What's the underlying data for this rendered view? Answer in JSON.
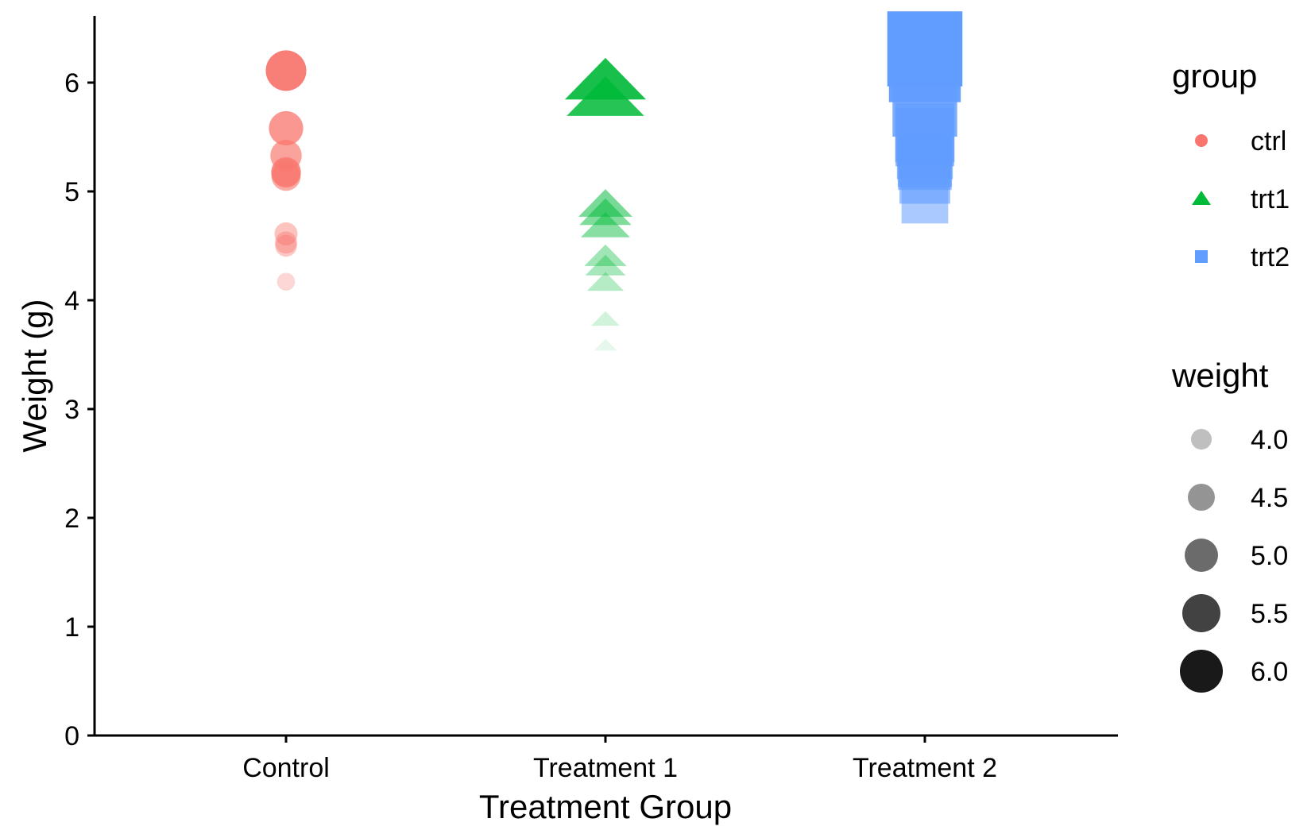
{
  "chart_data": {
    "type": "scatter",
    "xlabel": "Treatment Group",
    "ylabel": "Weight (g)",
    "ylim": [
      0,
      6.6
    ],
    "y_ticks": [
      "0",
      "1",
      "2",
      "3",
      "4",
      "5",
      "6"
    ],
    "categories": [
      "Control",
      "Treatment 1",
      "Treatment 2"
    ],
    "grid": false,
    "legend_placement": "right",
    "series": [
      {
        "name": "ctrl",
        "category": "Control",
        "shape": "circle",
        "color": "#F8766D",
        "values": [
          4.17,
          5.58,
          5.18,
          6.11,
          4.5,
          4.61,
          5.17,
          4.53,
          5.33,
          5.14
        ]
      },
      {
        "name": "trt1",
        "category": "Treatment 1",
        "shape": "triangle",
        "color": "#00BA38",
        "values": [
          4.81,
          4.17,
          4.41,
          3.59,
          5.87,
          3.83,
          6.03,
          4.89,
          4.32,
          4.69
        ]
      },
      {
        "name": "trt2",
        "category": "Treatment 2",
        "shape": "square",
        "color": "#619CFF",
        "values": [
          6.31,
          5.12,
          5.54,
          5.5,
          5.37,
          5.29,
          4.92,
          6.15,
          5.8,
          5.26
        ]
      }
    ],
    "legend_group": {
      "title": "group",
      "items": [
        {
          "label": "ctrl",
          "shape": "circle",
          "color": "#F8766D"
        },
        {
          "label": "trt1",
          "shape": "triangle",
          "color": "#00BA38"
        },
        {
          "label": "trt2",
          "shape": "square",
          "color": "#619CFF"
        }
      ]
    },
    "legend_weight": {
      "title": "weight",
      "items": [
        {
          "label": "4.0",
          "value": 4.0
        },
        {
          "label": "4.5",
          "value": 4.5
        },
        {
          "label": "5.0",
          "value": 5.0
        },
        {
          "label": "5.5",
          "value": 5.5
        },
        {
          "label": "6.0",
          "value": 6.0
        }
      ],
      "color": "#000000"
    },
    "weight_range": [
      3.59,
      6.31
    ]
  }
}
